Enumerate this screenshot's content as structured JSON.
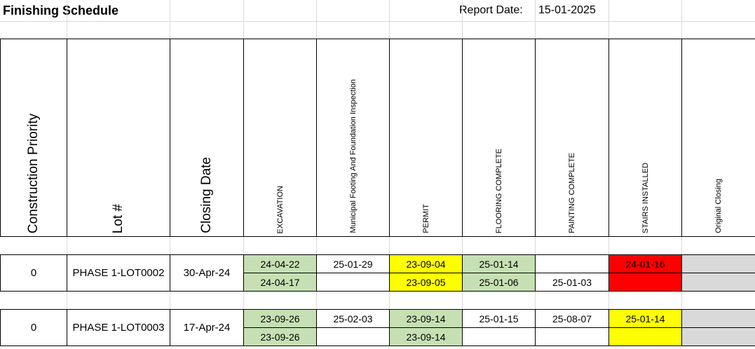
{
  "header": {
    "title": "Finishing Schedule",
    "report_date_label": "Report Date:",
    "report_date": "15-01-2025"
  },
  "columns": [
    "Construction Priority",
    "Lot #",
    "Closing Date",
    "EXCAVATION",
    "Municipal Footing And Foundation Inspection",
    "PERMIT",
    "FLOORING COMPLETE",
    "PAINTING COMPLETE",
    "STAIRS INSTALLED",
    "Original Closing"
  ],
  "rows": [
    {
      "priority": "0",
      "lot": "PHASE 1-LOT0002",
      "closing_date": "30-Apr-24",
      "milestones": [
        [
          {
            "value": "24-04-22",
            "fill": "#c6e0b4"
          },
          {
            "value": "24-04-17",
            "fill": "#c6e0b4"
          }
        ],
        [
          {
            "value": "25-01-29",
            "fill": "#ffffff"
          },
          {
            "value": null,
            "fill": "#ffffff"
          }
        ],
        [
          {
            "value": "23-09-04",
            "fill": "#ffff00"
          },
          {
            "value": "23-09-05",
            "fill": "#ffff00"
          }
        ],
        [
          {
            "value": "25-01-14",
            "fill": "#c6e0b4"
          },
          {
            "value": "25-01-06",
            "fill": "#c6e0b4"
          }
        ],
        [
          {
            "value": null,
            "fill": "#ffffff"
          },
          {
            "value": "25-01-03",
            "fill": "#ffffff"
          }
        ],
        [
          {
            "value": "24-01-16",
            "fill": "#ff0000"
          },
          {
            "value": null,
            "fill": "#ff0000"
          }
        ],
        [
          {
            "value": null,
            "fill": "#d9d9d9"
          },
          {
            "value": null,
            "fill": "#d9d9d9"
          }
        ]
      ]
    },
    {
      "priority": "0",
      "lot": "PHASE 1-LOT0003",
      "closing_date": "17-Apr-24",
      "milestones": [
        [
          {
            "value": "23-09-26",
            "fill": "#c6e0b4"
          },
          {
            "value": "23-09-26",
            "fill": "#c6e0b4"
          }
        ],
        [
          {
            "value": "25-02-03",
            "fill": "#ffffff"
          },
          {
            "value": null,
            "fill": "#ffffff"
          }
        ],
        [
          {
            "value": "23-09-14",
            "fill": "#c6e0b4"
          },
          {
            "value": "23-09-14",
            "fill": "#c6e0b4"
          }
        ],
        [
          {
            "value": "25-01-15",
            "fill": "#ffffff"
          },
          {
            "value": null,
            "fill": "#ffffff"
          }
        ],
        [
          {
            "value": "25-08-07",
            "fill": "#ffffff"
          },
          {
            "value": null,
            "fill": "#ffffff"
          }
        ],
        [
          {
            "value": "25-01-14",
            "fill": "#ffff00"
          },
          {
            "value": null,
            "fill": "#ffff00"
          }
        ],
        [
          {
            "value": null,
            "fill": "#d9d9d9"
          },
          {
            "value": null,
            "fill": "#d9d9d9"
          }
        ]
      ]
    }
  ]
}
